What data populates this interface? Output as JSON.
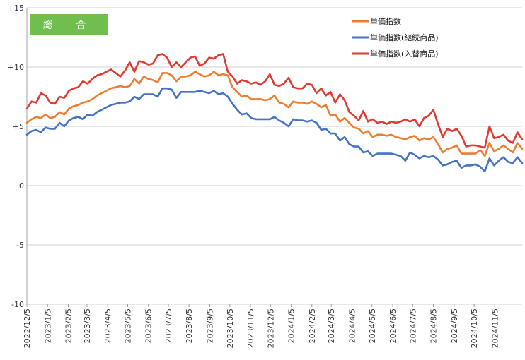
{
  "chart_data": {
    "type": "line",
    "title": "",
    "badge": "総 合",
    "xlabel": "",
    "ylabel": "",
    "ylim": [
      -10,
      15
    ],
    "yticks": [
      15,
      10,
      5,
      0,
      -5,
      -10
    ],
    "ytick_labels": [
      "+15",
      "+10",
      "+5",
      "0",
      "-5",
      "-10"
    ],
    "x_tick_labels": [
      "2022/12/5",
      "2023/1/5",
      "2023/2/5",
      "2023/3/5",
      "2023/4/5",
      "2023/5/5",
      "2023/6/5",
      "2023/7/5",
      "2023/8/5",
      "2023/9/5",
      "2023/10/5",
      "2023/11/5",
      "2023/12/5",
      "2024/1/5",
      "2024/2/5",
      "2024/3/5",
      "2024/4/5",
      "2024/5/5",
      "2024/6/5",
      "2024/7/5",
      "2024/8/5",
      "2024/9/5",
      "2024/10/5",
      "2024/11/5"
    ],
    "x_tick_positions": [
      0,
      4.43,
      8.86,
      12.86,
      17.29,
      21.57,
      26,
      30.29,
      34.71,
      39.14,
      43.43,
      47.86,
      52.14,
      56.57,
      61,
      65.14,
      69.57,
      73.86,
      78.29,
      82.57,
      87,
      91.43,
      95.71,
      100.14
    ],
    "grid": "horizontal",
    "legend_position": "top-right",
    "series": [
      {
        "name": "単価指数",
        "color": "#ED7D31",
        "values": [
          5.3,
          5.6,
          5.8,
          5.7,
          6.0,
          5.7,
          5.8,
          6.2,
          6.0,
          6.5,
          6.7,
          6.8,
          7.0,
          7.1,
          7.3,
          7.6,
          7.8,
          8.0,
          8.2,
          8.3,
          8.4,
          8.3,
          8.4,
          9.0,
          8.6,
          9.2,
          9.0,
          8.9,
          8.7,
          9.5,
          9.5,
          9.3,
          8.8,
          9.2,
          9.2,
          9.3,
          9.6,
          9.4,
          9.2,
          9.3,
          9.6,
          9.3,
          9.4,
          9.3,
          8.3,
          7.9,
          7.5,
          7.6,
          7.3,
          7.3,
          7.3,
          7.2,
          7.3,
          7.6,
          7.0,
          6.9,
          6.6,
          7.1,
          7.0,
          7.0,
          6.9,
          7.1,
          6.9,
          6.6,
          6.8,
          5.9,
          6.0,
          5.4,
          5.7,
          5.3,
          4.9,
          4.8,
          4.4,
          4.6,
          4.1,
          4.3,
          4.3,
          4.2,
          4.3,
          4.1,
          4.0,
          3.9,
          4.1,
          4.2,
          3.8,
          4.0,
          3.9,
          4.1,
          3.5,
          2.8,
          3.1,
          3.2,
          3.4,
          2.7,
          2.7,
          2.7,
          2.7,
          3.0,
          2.5,
          3.6,
          2.9,
          3.1,
          3.4,
          3.1,
          2.8,
          3.6,
          3.1
        ]
      },
      {
        "name": "単価指数(継続商品)",
        "color": "#4472C4",
        "values": [
          4.3,
          4.6,
          4.7,
          4.5,
          4.9,
          4.8,
          4.8,
          5.3,
          5.0,
          5.5,
          5.7,
          5.8,
          5.6,
          6.0,
          5.9,
          6.2,
          6.4,
          6.6,
          6.8,
          6.9,
          7.0,
          7.0,
          7.1,
          7.5,
          7.3,
          7.7,
          7.7,
          7.7,
          7.5,
          8.2,
          8.2,
          8.1,
          7.4,
          7.9,
          7.9,
          7.9,
          7.9,
          8.0,
          7.9,
          7.8,
          8.0,
          7.7,
          7.8,
          7.5,
          6.9,
          6.4,
          6.0,
          6.1,
          5.7,
          5.6,
          5.6,
          5.6,
          5.6,
          5.8,
          5.5,
          5.3,
          5.0,
          5.6,
          5.5,
          5.5,
          5.4,
          5.5,
          5.3,
          4.7,
          4.8,
          4.4,
          4.4,
          3.8,
          4.1,
          3.5,
          3.3,
          3.3,
          2.8,
          2.9,
          2.5,
          2.7,
          2.7,
          2.7,
          2.7,
          2.6,
          2.5,
          2.1,
          2.8,
          2.6,
          2.3,
          2.5,
          2.4,
          2.5,
          2.2,
          1.7,
          1.8,
          2.0,
          2.1,
          1.5,
          1.7,
          1.7,
          1.8,
          1.6,
          1.2,
          2.3,
          1.7,
          2.1,
          2.4,
          2.0,
          1.9,
          2.4,
          1.9
        ]
      },
      {
        "name": "単価指数(入替商品)",
        "color": "#E03A33",
        "values": [
          6.5,
          7.1,
          7.0,
          7.8,
          7.6,
          7.0,
          6.9,
          7.5,
          7.4,
          8.0,
          8.2,
          8.3,
          8.8,
          8.6,
          9.0,
          9.3,
          9.4,
          9.6,
          9.8,
          9.5,
          9.2,
          9.7,
          10.4,
          9.6,
          10.5,
          10.4,
          10.2,
          10.3,
          11.0,
          11.1,
          10.8,
          10.0,
          10.4,
          10.0,
          10.4,
          10.8,
          10.9,
          10.1,
          10.3,
          10.8,
          10.7,
          11.0,
          11.1,
          9.6,
          9.2,
          8.6,
          8.9,
          8.8,
          8.6,
          8.7,
          8.5,
          8.8,
          9.4,
          8.5,
          8.4,
          8.6,
          9.1,
          8.3,
          8.2,
          8.2,
          8.6,
          8.5,
          7.8,
          8.2,
          7.6,
          7.9,
          7.0,
          7.7,
          7.2,
          6.2,
          5.9,
          5.5,
          6.3,
          5.4,
          5.6,
          5.3,
          5.4,
          5.2,
          5.4,
          5.3,
          5.4,
          5.6,
          5.4,
          5.6,
          5.0,
          5.7,
          5.9,
          6.4,
          5.2,
          4.1,
          4.8,
          4.6,
          4.8,
          4.2,
          3.3,
          3.4,
          3.4,
          3.3,
          3.2,
          5.0,
          4.0,
          4.1,
          4.3,
          3.8,
          3.6,
          4.5,
          3.9
        ]
      }
    ]
  }
}
